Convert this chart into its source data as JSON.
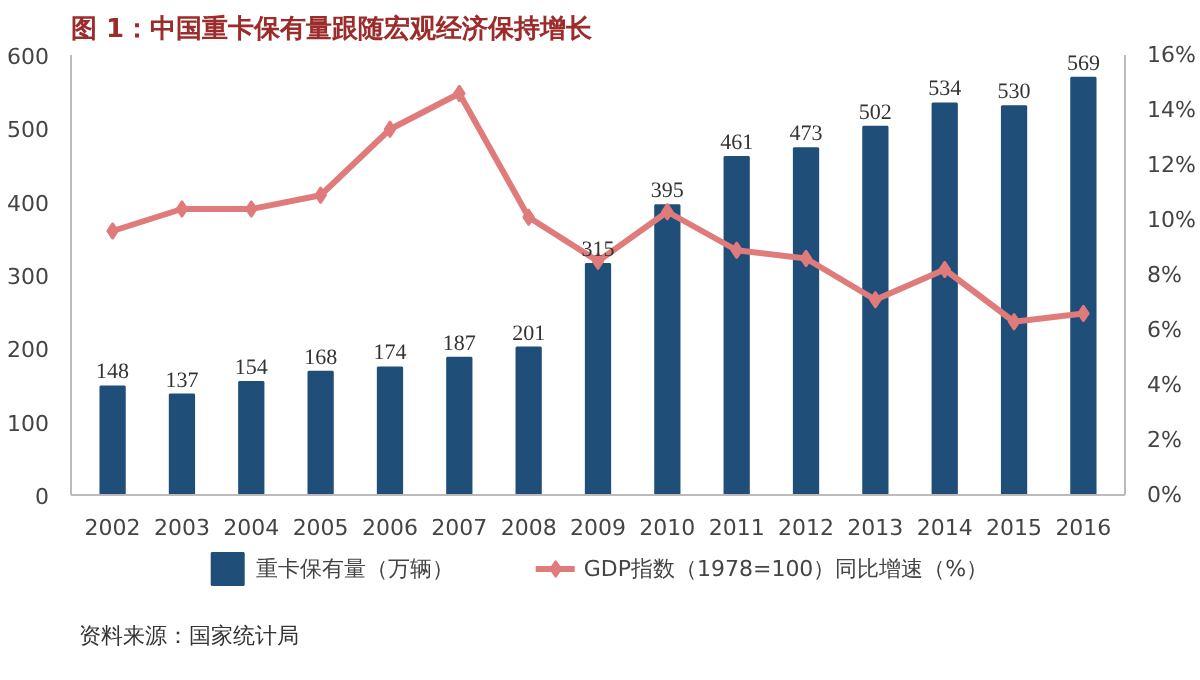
{
  "chart_data": {
    "type": "bar",
    "title": "图 1：中国重卡保有量跟随宏观经济保持增长",
    "categories": [
      "2002",
      "2003",
      "2004",
      "2005",
      "2006",
      "2007",
      "2008",
      "2009",
      "2010",
      "2011",
      "2012",
      "2013",
      "2014",
      "2015",
      "2016"
    ],
    "series": [
      {
        "name": "重卡保有量（万辆）",
        "color": "#1f4e79",
        "values": [
          148,
          137,
          154,
          168,
          174,
          187,
          201,
          315,
          395,
          461,
          473,
          502,
          534,
          530,
          569
        ],
        "value_labels": [
          "148",
          "137",
          "154",
          "168",
          "174",
          "187",
          "201",
          "315",
          "395",
          "461",
          "473",
          "502",
          "534",
          "530",
          "569"
        ]
      },
      {
        "name": "GDP指数（1978=100）同比增速（%）",
        "color": "#e07b7b",
        "type": "line",
        "axis": "y2",
        "marker": "diamond",
        "values": [
          9.6,
          10.4,
          10.4,
          10.9,
          13.3,
          14.6,
          10.1,
          8.5,
          10.3,
          8.9,
          8.6,
          7.1,
          8.2,
          6.3,
          6.6
        ]
      }
    ],
    "ylim": [
      0,
      600
    ],
    "yticks": [
      0,
      100,
      200,
      300,
      400,
      500,
      600
    ],
    "y2lim": [
      0,
      16
    ],
    "y2ticks": [
      {
        "value": 0,
        "label": "0%"
      },
      {
        "value": 2,
        "label": "2%"
      },
      {
        "value": 4,
        "label": "4%"
      },
      {
        "value": 6,
        "label": "6%"
      },
      {
        "value": 8,
        "label": "8%"
      },
      {
        "value": 10,
        "label": "10%"
      },
      {
        "value": 12,
        "label": "12%"
      },
      {
        "value": 14,
        "label": "14%"
      },
      {
        "value": 16,
        "label": "16%"
      }
    ],
    "grid": false,
    "legend": "bottom",
    "annotations": [
      "资料来源：国家统计局"
    ]
  }
}
